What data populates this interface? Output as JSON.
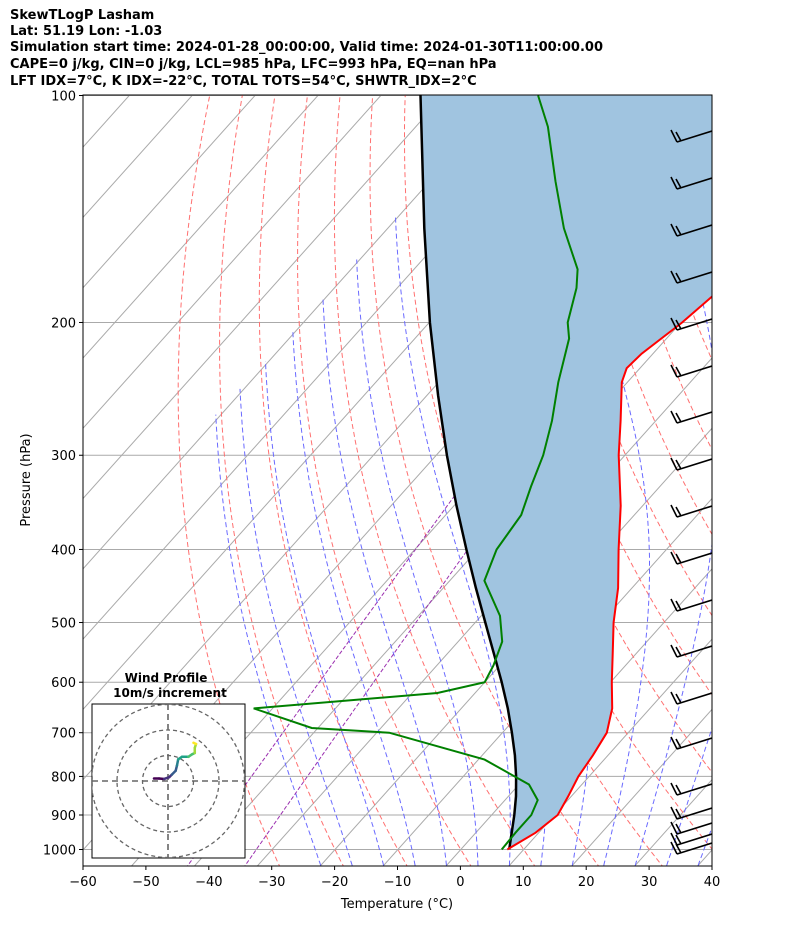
{
  "header": {
    "line1": "SkewTLogP Lasham",
    "line2": "Lat: 51.19   Lon: -1.03",
    "line3": "Simulation start time: 2024-01-28_00:00:00, Valid time: 2024-01-30T11:00:00.00",
    "line4": "CAPE=0 j/kg, CIN=0 j/kg, LCL=985 hPa, LFC=993 hPa, EQ=nan hPa",
    "line5": "LFT IDX=7°C, K IDX=-22°C, TOTAL TOTS=54°C, SHWTR_IDX=2°C"
  },
  "chart_data": {
    "type": "line",
    "xlabel": "Temperature (°C)",
    "ylabel": "Pressure (hPa)",
    "xlim": [
      -60,
      40
    ],
    "ylim": [
      1050,
      100
    ],
    "y_scale": "log",
    "skew": true,
    "grid": true,
    "x_ticks": [
      "−60",
      "−50",
      "−40",
      "−30",
      "−20",
      "−10",
      "0",
      "10",
      "20",
      "30",
      "40"
    ],
    "y_ticks": [
      "100",
      "200",
      "300",
      "400",
      "500",
      "600",
      "700",
      "800",
      "900",
      "1000"
    ],
    "colors": {
      "temperature": "#ff0000",
      "dewpoint": "#008000",
      "parcel": "#000000",
      "shade": "#a0c4e0",
      "dry_adiabat": "#ff7070",
      "moist_adiabat": "#6a6aff",
      "mixing_ratio": "#9b30b0",
      "isotherm": "#aaaaaa"
    },
    "series": [
      {
        "key": "temperature",
        "points": [
          [
            1000,
            7.4
          ],
          [
            950,
            9.5
          ],
          [
            900,
            10.5
          ],
          [
            850,
            9.5
          ],
          [
            800,
            8.3
          ],
          [
            750,
            7.6
          ],
          [
            700,
            6.6
          ],
          [
            650,
            4.0
          ],
          [
            600,
            0.2
          ],
          [
            550,
            -3.7
          ],
          [
            500,
            -8.0
          ],
          [
            450,
            -12.2
          ],
          [
            400,
            -17.6
          ],
          [
            350,
            -23.5
          ],
          [
            300,
            -31.0
          ],
          [
            270,
            -35.6
          ],
          [
            240,
            -40.9
          ],
          [
            230,
            -42.1
          ],
          [
            220,
            -41.8
          ],
          [
            200,
            -39.8
          ],
          [
            180,
            -38.4
          ],
          [
            170,
            -37.5
          ],
          [
            160,
            -37.5
          ],
          [
            150,
            -37.0
          ],
          [
            140,
            -37.1
          ],
          [
            130,
            -37.5
          ],
          [
            120,
            -38.4
          ],
          [
            110,
            -39.7
          ],
          [
            100,
            -41.1
          ]
        ]
      },
      {
        "key": "dewpoint",
        "points": [
          [
            1000,
            6.5
          ],
          [
            950,
            6.3
          ],
          [
            900,
            6.3
          ],
          [
            860,
            5.2
          ],
          [
            820,
            1.6
          ],
          [
            760,
            -9.0
          ],
          [
            700,
            -28.0
          ],
          [
            690,
            -41.0
          ],
          [
            650,
            -53.0
          ],
          [
            620,
            -26.0
          ],
          [
            600,
            -20.0
          ],
          [
            570,
            -21.0
          ],
          [
            530,
            -23.0
          ],
          [
            490,
            -27.0
          ],
          [
            440,
            -34.5
          ],
          [
            400,
            -37.0
          ],
          [
            360,
            -38.0
          ],
          [
            330,
            -40.5
          ],
          [
            300,
            -43.0
          ],
          [
            270,
            -46.5
          ],
          [
            240,
            -51.0
          ],
          [
            210,
            -55.5
          ],
          [
            200,
            -58.0
          ],
          [
            180,
            -61.5
          ],
          [
            170,
            -64.0
          ],
          [
            150,
            -72.0
          ],
          [
            130,
            -80.0
          ],
          [
            110,
            -89.0
          ],
          [
            100,
            -95.0
          ]
        ]
      },
      {
        "key": "parcel",
        "points": [
          [
            1000,
            7.7
          ],
          [
            950,
            5.7
          ],
          [
            900,
            3.6
          ],
          [
            850,
            1.2
          ],
          [
            800,
            -1.6
          ],
          [
            750,
            -4.8
          ],
          [
            700,
            -8.5
          ],
          [
            650,
            -12.6
          ],
          [
            600,
            -17.3
          ],
          [
            550,
            -22.6
          ],
          [
            500,
            -28.4
          ],
          [
            450,
            -34.8
          ],
          [
            400,
            -41.8
          ],
          [
            350,
            -49.6
          ],
          [
            300,
            -58.3
          ],
          [
            250,
            -68.2
          ],
          [
            200,
            -79.9
          ],
          [
            150,
            -94.2
          ],
          [
            100,
            -113.7
          ]
        ]
      }
    ],
    "hodograph": {
      "title": "Wind Profile",
      "subtitle": "10m/s increment",
      "rings_ms": [
        10,
        20,
        30
      ],
      "points_ms": [
        [
          -5.5,
          1.0
        ],
        [
          -3.5,
          1.0
        ],
        [
          -1.5,
          0.8
        ],
        [
          0.5,
          1.5
        ],
        [
          1.5,
          2.5
        ],
        [
          3.0,
          4.0
        ],
        [
          3.5,
          6.0
        ],
        [
          4.0,
          8.5
        ],
        [
          5.5,
          9.5
        ],
        [
          8.0,
          9.5
        ],
        [
          9.5,
          10.5
        ],
        [
          10.5,
          11.0
        ],
        [
          10.5,
          13.0
        ],
        [
          11.0,
          14.5
        ],
        [
          10.0,
          15.0
        ]
      ]
    }
  }
}
